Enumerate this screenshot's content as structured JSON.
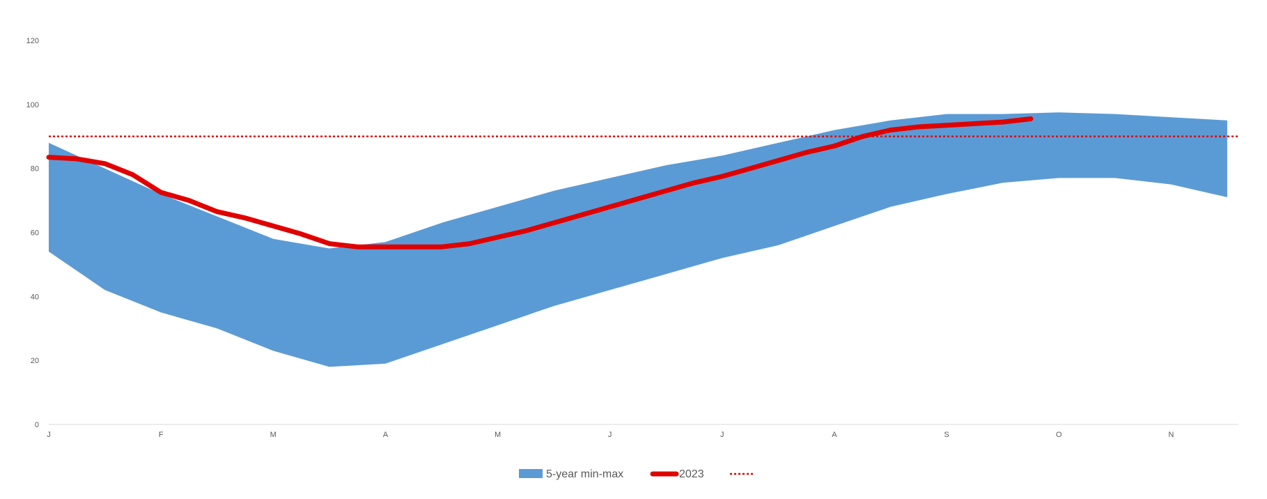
{
  "chart_data": {
    "type": "area",
    "categories": [
      "J",
      "F",
      "M",
      "A",
      "M",
      "J",
      "J",
      "A",
      "S",
      "O",
      "N"
    ],
    "ylim": [
      0,
      120
    ],
    "yticks": [
      0,
      20,
      40,
      60,
      80,
      100,
      120
    ],
    "grid": false,
    "legend_position": "bottom",
    "colors": {
      "band": "#5B9BD5",
      "line": "#E00000",
      "reference": "#E00000",
      "axis": "#D9D9D9",
      "text": "#595959"
    },
    "series": [
      {
        "name": "5-year min-max",
        "kind": "band",
        "x": [
          0,
          0.5,
          1,
          1.5,
          2,
          2.5,
          3,
          3.5,
          4,
          4.5,
          5,
          5.5,
          6,
          6.5,
          7,
          7.5,
          8,
          8.5,
          9,
          9.5,
          10,
          10.5
        ],
        "lower": [
          54,
          42,
          35,
          30,
          23,
          18,
          19,
          25,
          31,
          37,
          42,
          47,
          52,
          56,
          62,
          68,
          72,
          75.5,
          77,
          77,
          75,
          71
        ],
        "upper": [
          88,
          80,
          72,
          65,
          58,
          55,
          57,
          63,
          68,
          73,
          77,
          81,
          84,
          88,
          92,
          95,
          97,
          97,
          97.5,
          97,
          96,
          95
        ]
      },
      {
        "name": "2023",
        "kind": "line",
        "x": [
          0,
          0.25,
          0.5,
          0.75,
          1,
          1.25,
          1.5,
          1.75,
          2,
          2.25,
          2.5,
          2.75,
          3,
          3.25,
          3.5,
          3.75,
          4,
          4.25,
          4.5,
          4.75,
          5,
          5.25,
          5.5,
          5.75,
          6,
          6.25,
          6.5,
          6.75,
          7,
          7.25,
          7.5,
          7.75,
          8,
          8.25,
          8.5,
          8.75
        ],
        "values": [
          83.5,
          83,
          81.5,
          78,
          72.5,
          70,
          66.5,
          64.5,
          62,
          59.5,
          56.5,
          55.5,
          55.5,
          55.5,
          55.5,
          56.5,
          58.5,
          60.5,
          63,
          65.5,
          68,
          70.5,
          73,
          75.5,
          77.5,
          80,
          82.5,
          85,
          87,
          90,
          92,
          93,
          93.5,
          94,
          94.5,
          95.5
        ]
      },
      {
        "name": "",
        "kind": "reference",
        "value": 90
      }
    ]
  }
}
